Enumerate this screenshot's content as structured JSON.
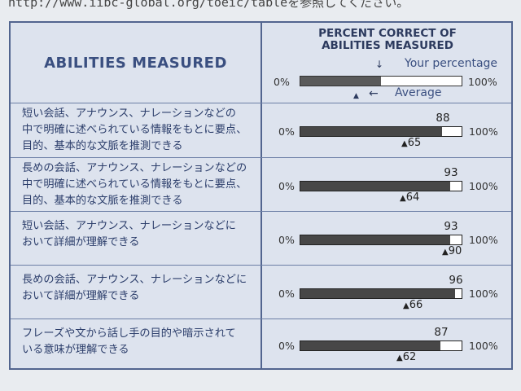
{
  "top_text": "http://www.iibc-global.org/toeic/tableを参照してください。",
  "header": {
    "left_title": "ABILITIES MEASURED",
    "right_title_line1": "PERCENT CORRECT OF",
    "right_title_line2": "ABILITIES MEASURED",
    "legend_zero": "0%",
    "legend_hundred": "100%",
    "your_percentage": "Your percentage",
    "average": "Average",
    "legend_arrow_down": "↓",
    "legend_arrow_left": "←",
    "legend_triangle": "▲"
  },
  "percent_zero": "0%",
  "percent_hundred": "100%",
  "rows": [
    {
      "line1": "短い会話、アナウンス、ナレーションなどの",
      "line2": "中で明確に述べられている情報をもとに要点、",
      "line3": "目的、基本的な文脈を推測できる",
      "score": 88,
      "average": 65
    },
    {
      "line1": "長めの会話、アナウンス、ナレーションなどの",
      "line2": "中で明確に述べられている情報をもとに要点、",
      "line3": "目的、基本的な文脈を推測できる",
      "score": 93,
      "average": 64
    },
    {
      "line1": "短い会話、アナウンス、ナレーションなどに",
      "line2": "おいて詳細が理解できる",
      "line3": "",
      "score": 93,
      "average": 90
    },
    {
      "line1": "長めの会話、アナウンス、ナレーションなどに",
      "line2": "おいて詳細が理解できる",
      "line3": "",
      "score": 96,
      "average": 66
    },
    {
      "line1": "フレーズや文から話し手の目的や暗示されて",
      "line2": "いる意味が理解できる",
      "line3": "",
      "score": 87,
      "average": 62
    }
  ]
}
